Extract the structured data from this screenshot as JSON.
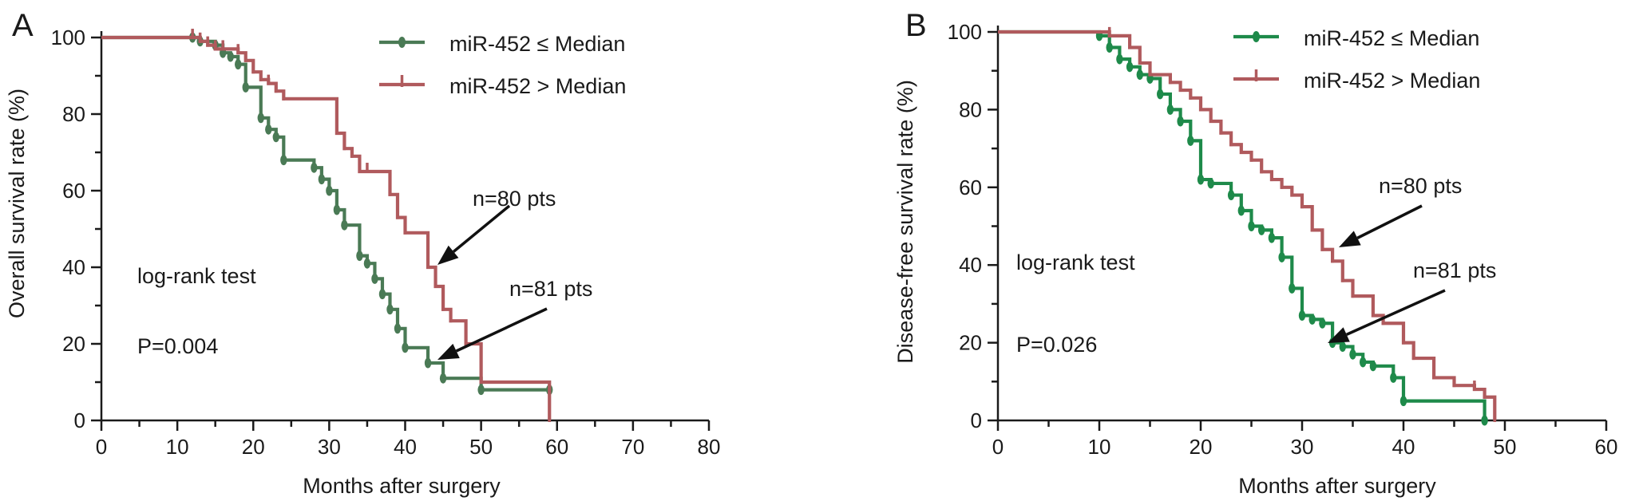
{
  "chart_data": [
    {
      "panel": "A",
      "type": "line",
      "step": true,
      "ylabel": "Overall survival rate (%)",
      "xlabel": "Months after surgery",
      "xlim": [
        0,
        80
      ],
      "ylim": [
        0,
        100
      ],
      "x_ticks": [
        0,
        10,
        20,
        30,
        40,
        50,
        60,
        70,
        80
      ],
      "y_ticks": [
        0,
        20,
        40,
        60,
        80,
        100
      ],
      "legend_position": "top-right",
      "annotations": {
        "test": "log-rank test",
        "p_value": "P=0.004",
        "n_high": "n=80 pts",
        "n_low": "n=81 pts"
      },
      "series": [
        {
          "name": "miR-452 ≤ Median",
          "color": "#4a7a55",
          "marker": "dot",
          "x": [
            0,
            12,
            13,
            15,
            16,
            17,
            18,
            19,
            21,
            22,
            23,
            24,
            28,
            29,
            30,
            31,
            32,
            34,
            35,
            36,
            37,
            38,
            39,
            40,
            43,
            45,
            50,
            59
          ],
          "y": [
            100,
            100,
            99,
            98,
            96,
            95,
            93,
            87,
            79,
            76,
            74,
            68,
            66,
            63,
            60,
            55,
            51,
            43,
            41,
            37,
            33,
            29,
            24,
            19,
            15,
            11,
            8,
            8
          ]
        },
        {
          "name": "miR-452 > Median",
          "color": "#b05a5d",
          "marker": "tick",
          "x": [
            0,
            12,
            13,
            14,
            15,
            16,
            18,
            19,
            20,
            21,
            22,
            23,
            24,
            31,
            32,
            33,
            34,
            35,
            38,
            39,
            40,
            43,
            44,
            45,
            46,
            48,
            50,
            59
          ],
          "y": [
            100,
            100,
            99,
            98,
            97,
            97,
            96,
            94,
            91,
            89,
            88,
            86,
            84,
            75,
            71,
            69,
            65,
            65,
            59,
            53,
            49,
            40,
            35,
            29,
            26,
            20,
            10,
            0
          ]
        }
      ]
    },
    {
      "panel": "B",
      "type": "line",
      "step": true,
      "ylabel": "Disease-free survival rate (%)",
      "xlabel": "Months after surgery",
      "xlim": [
        0,
        60
      ],
      "ylim": [
        0,
        100
      ],
      "x_ticks": [
        0,
        10,
        20,
        30,
        40,
        50,
        60
      ],
      "y_ticks": [
        0,
        20,
        40,
        60,
        80,
        100
      ],
      "legend_position": "top-right",
      "annotations": {
        "test": "log-rank test",
        "p_value": "P=0.026",
        "n_high": "n=80 pts",
        "n_low": "n=81 pts"
      },
      "series": [
        {
          "name": "miR-452 ≤ Median",
          "color": "#1e8a4a",
          "marker": "dot",
          "x": [
            0,
            10,
            11,
            12,
            13,
            14,
            15,
            16,
            17,
            18,
            19,
            20,
            21,
            23,
            24,
            25,
            26,
            27,
            28,
            29,
            30,
            31,
            32,
            33,
            34,
            35,
            36,
            37,
            39,
            40,
            48
          ],
          "y": [
            100,
            99,
            96,
            93,
            91,
            89,
            88,
            84,
            80,
            77,
            72,
            62,
            61,
            58,
            54,
            50,
            49,
            47,
            42,
            34,
            27,
            26,
            25,
            20,
            19,
            17,
            15,
            14,
            11,
            5,
            0
          ]
        },
        {
          "name": "miR-452 > Median",
          "color": "#b05a5d",
          "marker": "tick",
          "x": [
            0,
            11,
            13,
            14,
            15,
            17,
            18,
            19,
            20,
            21,
            22,
            23,
            24,
            25,
            26,
            27,
            28,
            29,
            30,
            31,
            32,
            33,
            34,
            35,
            37,
            38,
            40,
            41,
            43,
            45,
            47,
            48,
            49
          ],
          "y": [
            100,
            99,
            96,
            92,
            89,
            87,
            85,
            83,
            80,
            77,
            74,
            71,
            69,
            67,
            64,
            62,
            60,
            58,
            55,
            49,
            44,
            41,
            36,
            32,
            27,
            25,
            20,
            16,
            11,
            9,
            8,
            6,
            0
          ]
        }
      ]
    }
  ]
}
